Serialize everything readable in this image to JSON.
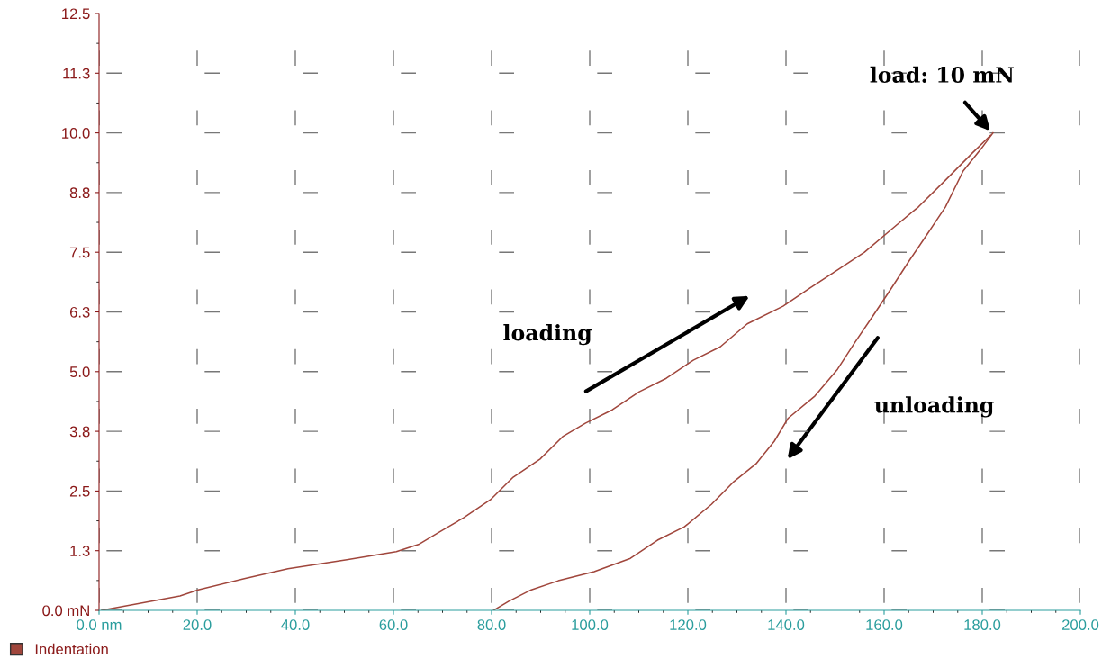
{
  "chart_data": {
    "type": "line",
    "legend": "bottom left",
    "grid": true,
    "marker": "none",
    "line_style": "solid",
    "xlim": [
      0,
      200
    ],
    "ylim": [
      0,
      12.5
    ],
    "xticks": [
      {
        "value": 0,
        "label": "0.0 nm"
      },
      {
        "value": 20,
        "label": "20.0"
      },
      {
        "value": 40,
        "label": "40.0"
      },
      {
        "value": 60,
        "label": "60.0"
      },
      {
        "value": 80,
        "label": "80.0"
      },
      {
        "value": 100,
        "label": "100.0"
      },
      {
        "value": 120,
        "label": "120.0"
      },
      {
        "value": 140,
        "label": "140.0"
      },
      {
        "value": 160,
        "label": "160.0"
      },
      {
        "value": 180,
        "label": "180.0"
      },
      {
        "value": 200,
        "label": "200.0"
      }
    ],
    "yticks": [
      {
        "value": 0,
        "label": "0.0 mN"
      },
      {
        "value": 1.25,
        "label": "1.3"
      },
      {
        "value": 2.5,
        "label": "2.5"
      },
      {
        "value": 3.75,
        "label": "3.8"
      },
      {
        "value": 5,
        "label": "5.0"
      },
      {
        "value": 6.25,
        "label": "6.3"
      },
      {
        "value": 7.5,
        "label": "7.5"
      },
      {
        "value": 8.75,
        "label": "8.8"
      },
      {
        "value": 10,
        "label": "10.0"
      },
      {
        "value": 11.25,
        "label": "11.3"
      },
      {
        "value": 12.5,
        "label": "12.5"
      }
    ],
    "series": [
      {
        "name": "Indentation",
        "color": "#a0463c",
        "x": [
          0.5,
          16.5,
          20.2,
          29.4,
          38.5,
          50.5,
          60.6,
          65.1,
          69.7,
          74.3,
          79.8,
          84.4,
          89.9,
          94.5,
          99.1,
          104.6,
          110.1,
          115.6,
          121.1,
          126.6,
          132.1,
          139.4,
          144.9,
          150.5,
          156,
          161.5,
          167,
          172.5,
          178,
          181.7
        ],
        "values": [
          0,
          0.3,
          0.43,
          0.66,
          0.87,
          1.06,
          1.23,
          1.38,
          1.66,
          1.94,
          2.32,
          2.79,
          3.17,
          3.64,
          3.92,
          4.2,
          4.58,
          4.86,
          5.24,
          5.52,
          6.0,
          6.37,
          6.75,
          7.13,
          7.5,
          7.98,
          8.45,
          9.01,
          9.58,
          9.95
        ]
      },
      {
        "color": "#a0463c",
        "x": [
          182.2,
          179.8,
          176.1,
          172.5,
          168.8,
          165.1,
          161.5,
          157.8,
          154.1,
          150.5,
          145.9,
          140.4,
          137.6,
          133.9,
          129.4,
          124.8,
          119.3,
          113.8,
          108.3,
          100.9,
          93.6,
          88.1,
          83.5,
          80.4
        ],
        "values": [
          10.0,
          9.67,
          9.2,
          8.45,
          7.88,
          7.32,
          6.75,
          6.18,
          5.62,
          5.05,
          4.49,
          4.02,
          3.54,
          3.07,
          2.7,
          2.22,
          1.75,
          1.47,
          1.09,
          0.81,
          0.62,
          0.43,
          0.19,
          0
        ]
      }
    ],
    "annotations": [
      {
        "text": "load: 10 mN",
        "x": 182,
        "y": 10
      },
      "loading",
      "unloading"
    ]
  }
}
